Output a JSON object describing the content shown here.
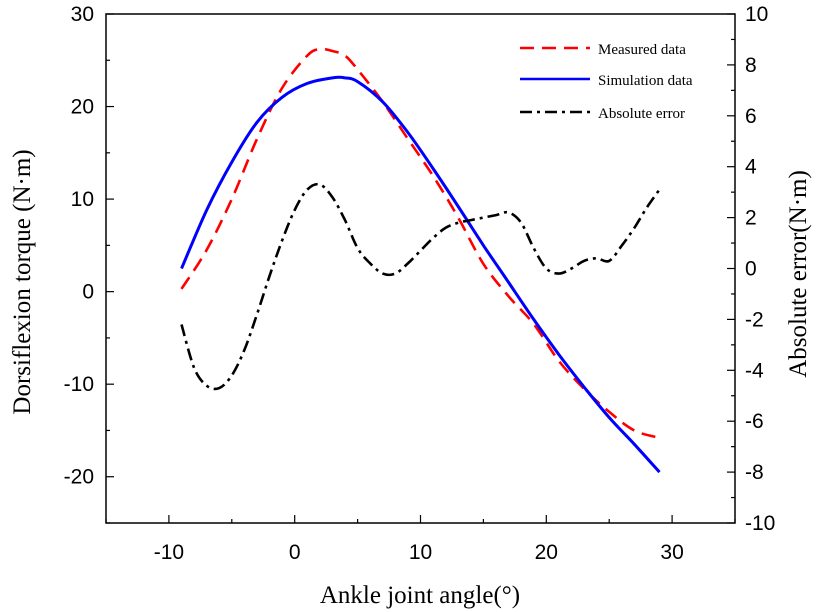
{
  "chart_data": {
    "type": "line",
    "xlabel": "Ankle joint angle(°)",
    "ylabel_left": "Dorsiflexion torque (N·m)",
    "ylabel_right": "Absolute error(N·m)",
    "xlim": [
      -15,
      35
    ],
    "ylim_left": [
      -25,
      30
    ],
    "ylim_right": [
      -10,
      10
    ],
    "x_ticks": [
      -10,
      0,
      10,
      20,
      30
    ],
    "y_left_ticks": [
      -20,
      -10,
      0,
      10,
      20,
      30
    ],
    "y_right_ticks": [
      -10,
      -8,
      -6,
      -4,
      -2,
      0,
      2,
      4,
      6,
      8,
      10
    ],
    "legend_position": "top-right",
    "grid": false,
    "series": [
      {
        "name": "Measured data",
        "axis": "left",
        "color": "#ff0000",
        "style": "dashed",
        "x": [
          -9,
          -7,
          -5,
          -3,
          -1,
          1,
          2,
          3,
          4,
          5,
          7,
          9,
          11,
          13,
          15,
          17,
          19,
          21,
          23,
          25,
          27,
          29
        ],
        "y": [
          0.3,
          4.5,
          10.0,
          16.5,
          22.0,
          25.5,
          26.2,
          26.0,
          25.5,
          24.0,
          20.5,
          16.5,
          12.5,
          8.0,
          3.0,
          -0.5,
          -3.5,
          -7.5,
          -10.5,
          -13.0,
          -15.0,
          -15.8
        ]
      },
      {
        "name": "Simulation data",
        "axis": "left",
        "color": "#0000ff",
        "style": "solid",
        "x": [
          -9,
          -7,
          -5,
          -3,
          -1,
          1,
          3,
          4,
          5,
          7,
          9,
          11,
          13,
          15,
          17,
          19,
          21,
          23,
          25,
          27,
          29
        ],
        "y": [
          2.5,
          8.8,
          14.0,
          18.3,
          21.0,
          22.5,
          23.1,
          23.1,
          22.7,
          20.5,
          17.2,
          13.3,
          9.2,
          5.0,
          1.0,
          -3.0,
          -6.8,
          -10.3,
          -13.6,
          -16.5,
          -19.5
        ]
      },
      {
        "name": "Absolute error",
        "axis": "right",
        "color": "#000000",
        "style": "dashdot",
        "x": [
          -9,
          -8,
          -7,
          -6,
          -5,
          -4,
          -3,
          -2,
          -1,
          0,
          1,
          2,
          3,
          4,
          5,
          6,
          7,
          8,
          9,
          10,
          11,
          12,
          13,
          14,
          15,
          16,
          17,
          18,
          19,
          20,
          21,
          22,
          23,
          24,
          25,
          26,
          27,
          28,
          29
        ],
        "y": [
          -2.2,
          -3.9,
          -4.6,
          -4.7,
          -4.2,
          -3.2,
          -1.8,
          -0.3,
          1.1,
          2.3,
          3.1,
          3.3,
          2.8,
          1.9,
          0.8,
          0.2,
          -0.2,
          -0.2,
          0.2,
          0.7,
          1.2,
          1.6,
          1.8,
          1.9,
          2.0,
          2.1,
          2.2,
          1.8,
          0.8,
          0.0,
          -0.2,
          0.0,
          0.3,
          0.4,
          0.3,
          0.9,
          1.6,
          2.4,
          3.1
        ]
      }
    ]
  }
}
